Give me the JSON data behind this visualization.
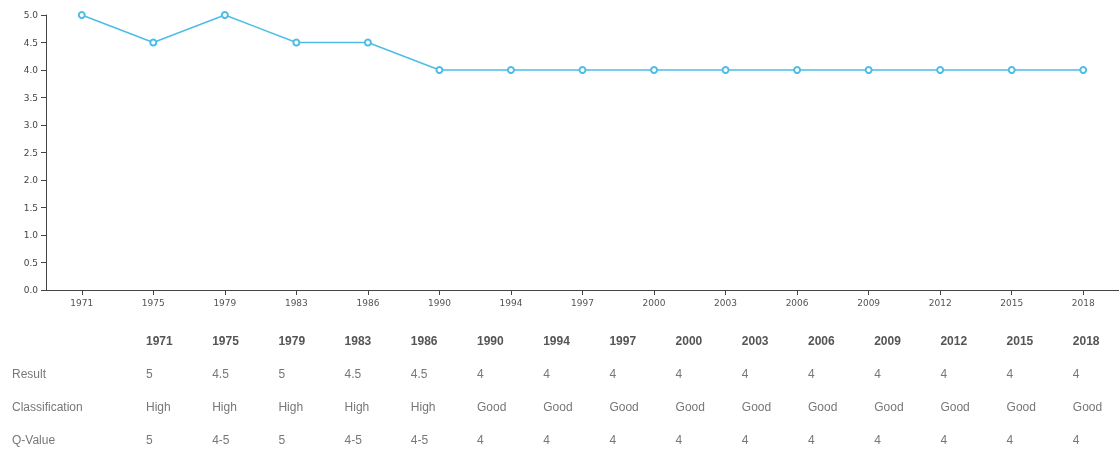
{
  "chart_data": {
    "type": "line",
    "categories": [
      "1971",
      "1975",
      "1979",
      "1983",
      "1986",
      "1990",
      "1994",
      "1997",
      "2000",
      "2003",
      "2006",
      "2009",
      "2012",
      "2015",
      "2018"
    ],
    "series": [
      {
        "color": "#4dbde6",
        "values": [
          5,
          4.5,
          5,
          4.5,
          4.5,
          4,
          4,
          4,
          4,
          4,
          4,
          4,
          4,
          4,
          4
        ]
      }
    ],
    "ylim": [
      0,
      5
    ],
    "yticks": [
      {
        "value": 0,
        "label": "0.0"
      },
      {
        "value": 0.5,
        "label": "0.5"
      },
      {
        "value": 1,
        "label": "1.0"
      },
      {
        "value": 1.5,
        "label": "1.5"
      },
      {
        "value": 2,
        "label": "2.0"
      },
      {
        "value": 2.5,
        "label": "2.5"
      },
      {
        "value": 3,
        "label": "3.0"
      },
      {
        "value": 3.5,
        "label": "3.5"
      },
      {
        "value": 4,
        "label": "4.0"
      },
      {
        "value": 4.5,
        "label": "4.5"
      },
      {
        "value": 5,
        "label": "5.0"
      }
    ],
    "marker": "circle",
    "line_style": "solid",
    "annotations": [
      "Result",
      "5",
      "4.5",
      "5",
      "4.5",
      "4.5",
      "4",
      "4",
      "4",
      "4",
      "4",
      "4",
      "4",
      "4",
      "4",
      "4",
      "Classification",
      "High",
      "High",
      "High",
      "High",
      "High",
      "Good",
      "Good",
      "Good",
      "Good",
      "Good",
      "Good",
      "Good",
      "Good",
      "Good",
      "Good",
      "Q-Value",
      "5",
      "4-5",
      "5",
      "4-5",
      "4-5",
      "4",
      "4",
      "4",
      "4",
      "4",
      "4",
      "4",
      "4",
      "4",
      "4"
    ]
  }
}
